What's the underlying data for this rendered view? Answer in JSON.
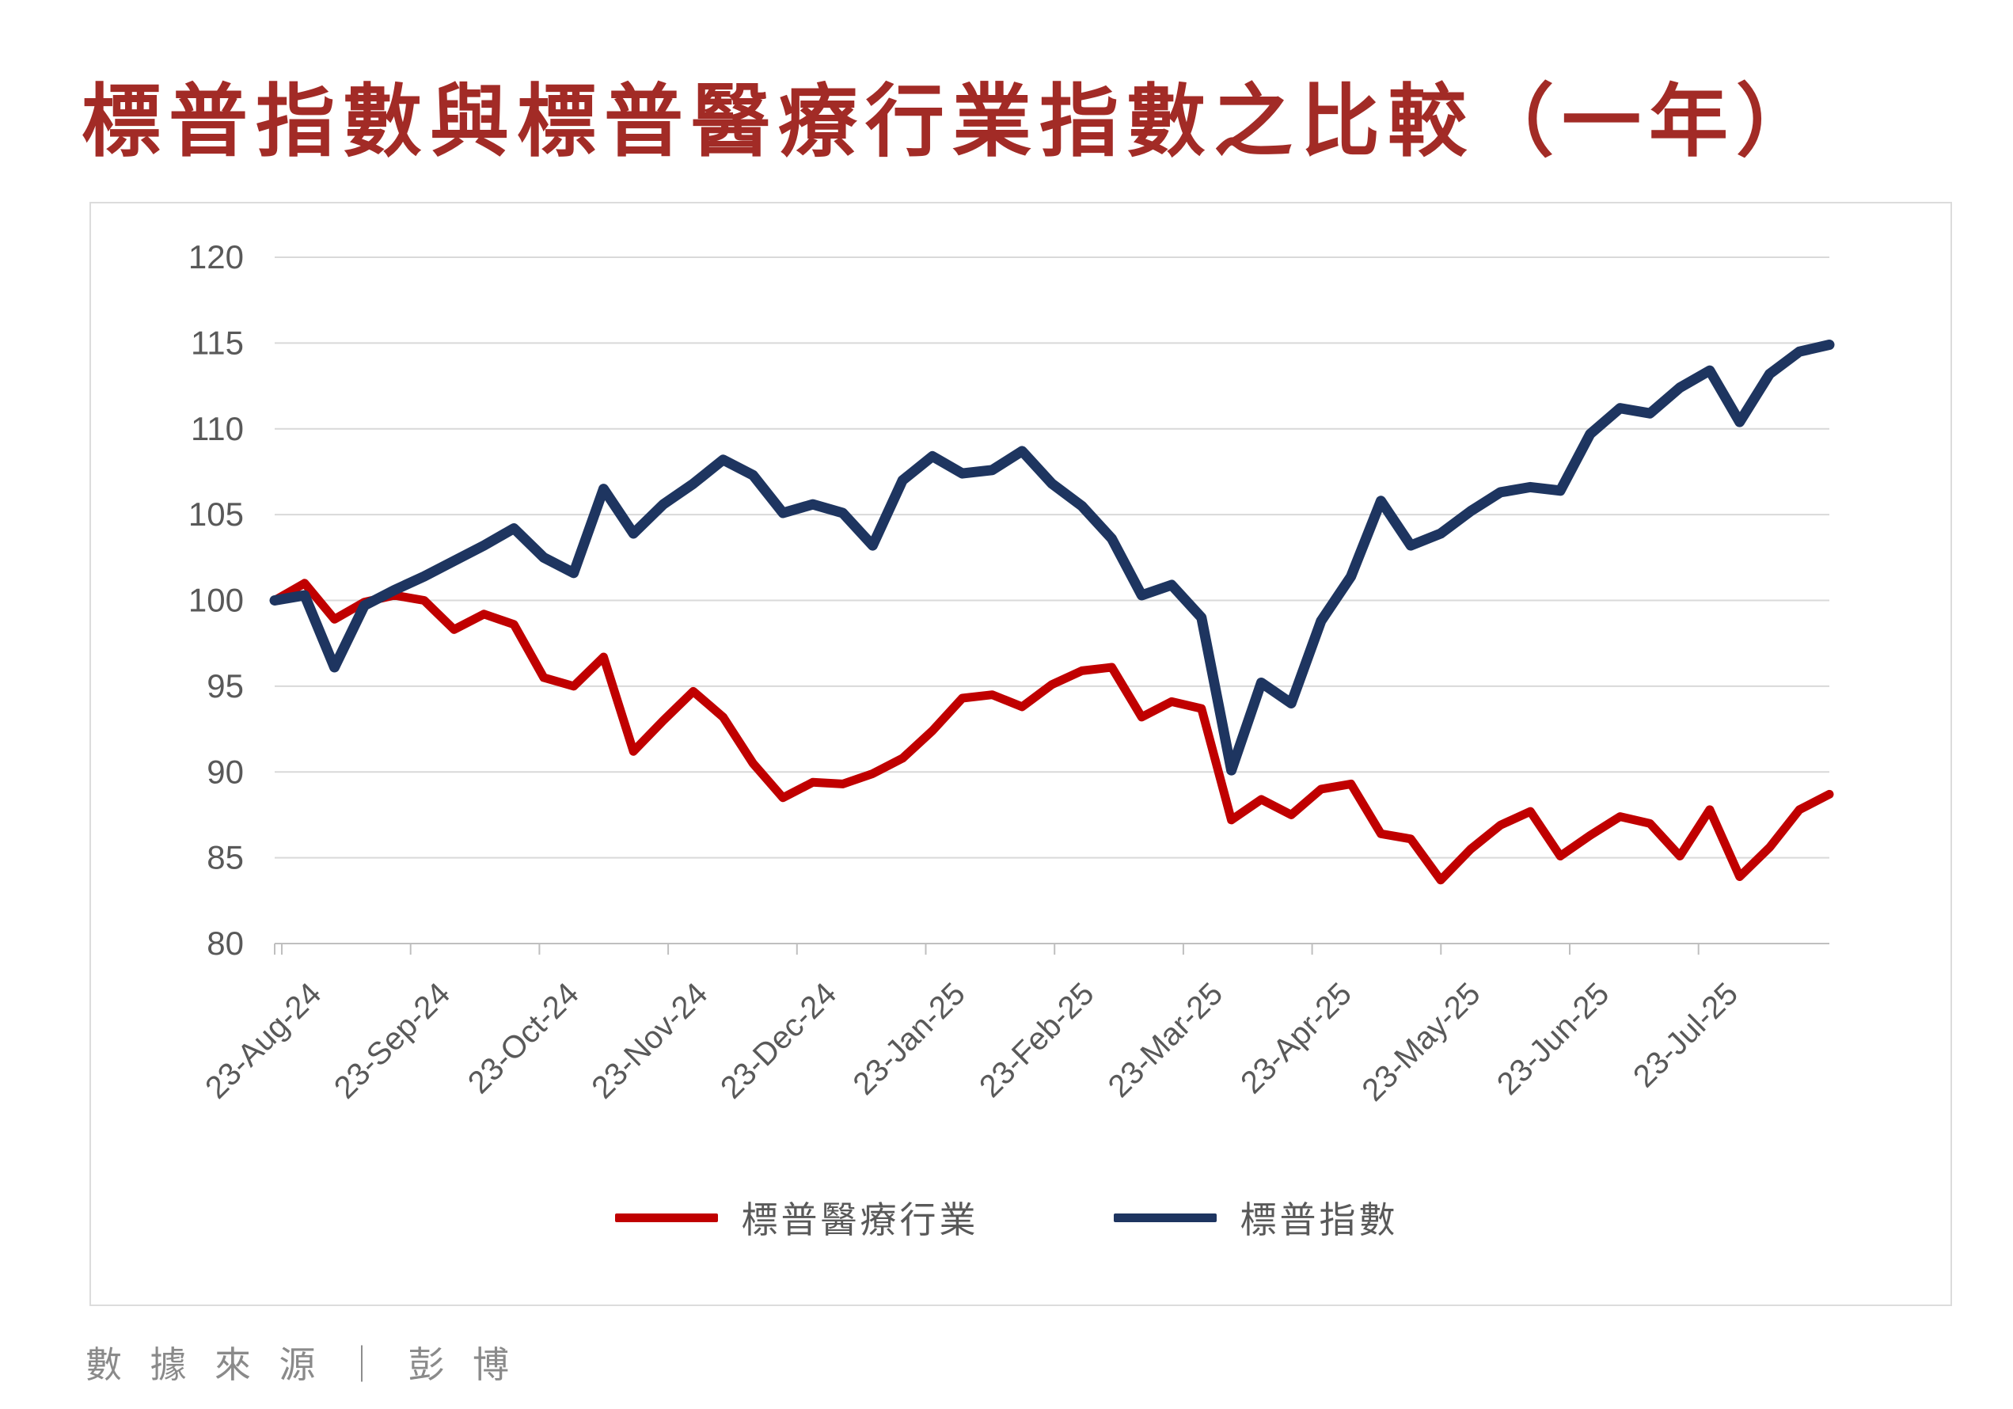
{
  "title": "標普指數與標普醫療行業指數之比較（一年）",
  "source": "數 據 來 源 ｜ 彭 博",
  "colors": {
    "title": "#A22B26",
    "axis_text": "#595959",
    "grid": "#D9D9D9",
    "axis_line": "#BFBFBF",
    "panel_border": "#DCDCDC",
    "legend_text": "#595959",
    "healthcare_red": "#C00000",
    "sp500_navy": "#1E3560"
  },
  "chart_data": {
    "type": "line",
    "title": "標普指數與標普醫療行業指數之比較（一年）",
    "xlabel": "",
    "ylabel": "",
    "ylim": [
      80,
      120
    ],
    "y_ticks": [
      80,
      85,
      90,
      95,
      100,
      105,
      110,
      115,
      120
    ],
    "grid": true,
    "legend_position": "bottom",
    "x_tick_labels": [
      "23-Aug-24",
      "23-Sep-24",
      "23-Oct-24",
      "23-Nov-24",
      "23-Dec-24",
      "23-Jan-25",
      "23-Feb-25",
      "23-Mar-25",
      "23-Apr-25",
      "23-May-25",
      "23-Jun-25",
      "23-Jul-25"
    ],
    "x_unit": "weekly points from 23-Aug-24 to ~23-Aug-25",
    "series": [
      {
        "name": "標普醫療行業",
        "color": "#C00000",
        "values": [
          100.0,
          101.0,
          98.9,
          99.9,
          100.3,
          100.0,
          98.3,
          99.2,
          98.6,
          95.5,
          95.0,
          96.7,
          91.2,
          93.0,
          94.7,
          93.2,
          90.5,
          88.5,
          89.4,
          89.3,
          89.9,
          90.8,
          92.4,
          94.3,
          94.5,
          93.8,
          95.1,
          95.9,
          96.1,
          93.2,
          94.1,
          93.7,
          87.2,
          88.4,
          87.5,
          89.0,
          89.3,
          86.4,
          86.1,
          83.7,
          85.5,
          86.9,
          87.7,
          85.1,
          86.3,
          87.4,
          87.0,
          85.1,
          87.8,
          83.9,
          85.6,
          87.8,
          88.7
        ]
      },
      {
        "name": "標普指數",
        "color": "#1E3560",
        "values": [
          100.0,
          100.3,
          96.1,
          99.7,
          100.6,
          101.4,
          102.3,
          103.2,
          104.2,
          102.5,
          101.6,
          106.5,
          103.9,
          105.6,
          106.8,
          108.2,
          107.3,
          105.1,
          105.6,
          105.1,
          103.2,
          107.0,
          108.4,
          107.4,
          107.6,
          108.7,
          106.8,
          105.5,
          103.6,
          100.3,
          100.9,
          99.0,
          90.1,
          95.2,
          94.0,
          98.8,
          101.4,
          105.8,
          103.2,
          103.9,
          105.2,
          106.3,
          106.6,
          106.4,
          109.7,
          111.2,
          110.9,
          112.4,
          113.4,
          110.4,
          113.2,
          114.5,
          114.9
        ]
      }
    ]
  }
}
